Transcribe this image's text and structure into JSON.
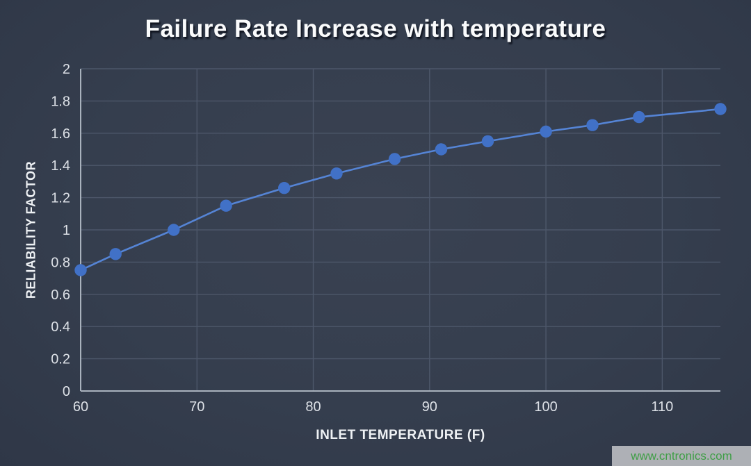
{
  "chart_data": {
    "type": "line",
    "title": "Failure Rate Increase with temperature",
    "xlabel": "INLET TEMPERATURE (F)",
    "ylabel": "RELIABILITY FACTOR",
    "x": [
      60,
      63,
      68,
      72.5,
      77.5,
      82,
      87,
      91,
      95,
      100,
      104,
      108,
      115
    ],
    "y": [
      0.75,
      0.85,
      1.0,
      1.15,
      1.26,
      1.35,
      1.44,
      1.5,
      1.55,
      1.61,
      1.65,
      1.7,
      1.75
    ],
    "xlim": [
      60,
      115
    ],
    "ylim": [
      0,
      2
    ],
    "x_ticks": [
      60,
      70,
      80,
      90,
      100,
      110
    ],
    "y_ticks": [
      0,
      0.2,
      0.4,
      0.6,
      0.8,
      1,
      1.2,
      1.4,
      1.6,
      1.8,
      2
    ],
    "grid": true,
    "legend": "none",
    "colors": {
      "background": "#353e4e",
      "gridline": "#4d576a",
      "axis_line": "#a9b2bd",
      "series_line": "#5584d5",
      "marker_fill": "#4171c7",
      "tick_label": "#dce0e6",
      "title_text": "#fafbfc"
    }
  },
  "watermark": {
    "text": "www.cntronics.com",
    "text_color": "#3f9e46",
    "background_color": "#b8bbbf"
  }
}
